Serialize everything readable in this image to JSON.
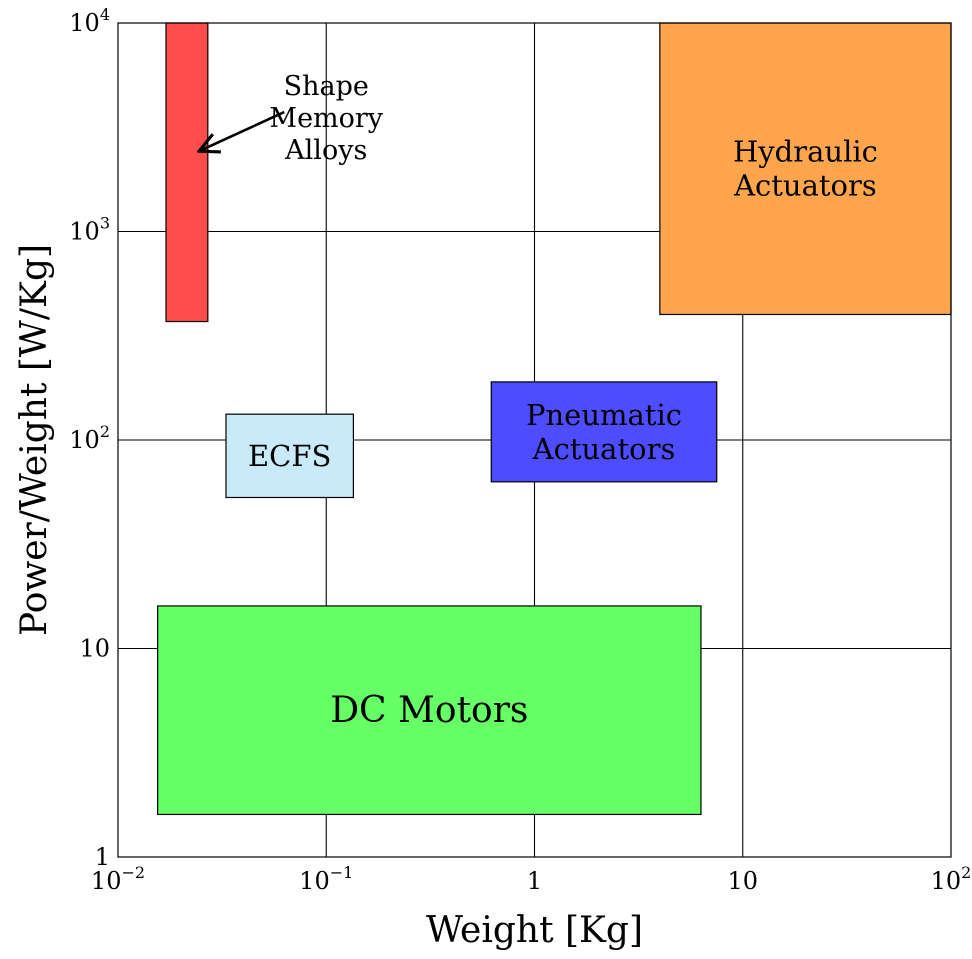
{
  "chart_data": {
    "type": "box",
    "xlabel": "Weight [Kg]",
    "ylabel": "Power/Weight [W/Kg]",
    "x_scale": "log",
    "y_scale": "log",
    "xlim": [
      0.01,
      100
    ],
    "ylim": [
      1,
      10000
    ],
    "grid": true,
    "x_ticks": [
      {
        "value": 0.01,
        "base": "10",
        "exp": "−2"
      },
      {
        "value": 0.1,
        "base": "10",
        "exp": "−1"
      },
      {
        "value": 1,
        "base": "1",
        "exp": ""
      },
      {
        "value": 10,
        "base": "10",
        "exp": ""
      },
      {
        "value": 100,
        "base": "10",
        "exp": "2"
      }
    ],
    "y_ticks": [
      {
        "value": 1,
        "base": "1",
        "exp": ""
      },
      {
        "value": 10,
        "base": "10",
        "exp": ""
      },
      {
        "value": 100,
        "base": "10",
        "exp": "2"
      },
      {
        "value": 1000,
        "base": "10",
        "exp": "3"
      },
      {
        "value": 10000,
        "base": "10",
        "exp": "4"
      }
    ],
    "regions": [
      {
        "id": "sma",
        "lines": [],
        "x": [
          0.017,
          0.027
        ],
        "y": [
          370,
          10000
        ],
        "color": "#ff4d4d"
      },
      {
        "id": "hydraulic",
        "lines": [
          "Hydraulic",
          "Actuators"
        ],
        "x": [
          4.0,
          100
        ],
        "y": [
          400,
          10000
        ],
        "color": "#ffa64d"
      },
      {
        "id": "pneumatic",
        "lines": [
          "Pneumatic",
          "Actuators"
        ],
        "x": [
          0.62,
          7.5
        ],
        "y": [
          63,
          190
        ],
        "color": "#4d4dff"
      },
      {
        "id": "ecfs",
        "lines": [
          "ECFS"
        ],
        "x": [
          0.033,
          0.135
        ],
        "y": [
          53,
          133
        ],
        "color": "#c9eaf8"
      },
      {
        "id": "dc-motors",
        "lines": [
          "DC Motors"
        ],
        "x": [
          0.0155,
          6.3
        ],
        "y": [
          1.6,
          16
        ],
        "color": "#66ff66"
      }
    ],
    "annotations": [
      {
        "id": "sma-label",
        "lines": [
          "Shape",
          "Memory",
          "Alloys"
        ],
        "x": 0.1,
        "y": 3500,
        "arrow_to": {
          "x": 0.025,
          "y": 2450
        }
      }
    ]
  }
}
